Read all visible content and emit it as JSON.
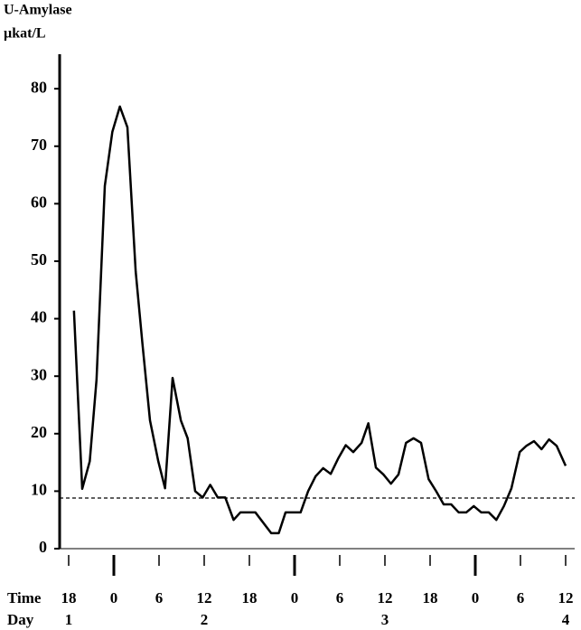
{
  "chart_data": {
    "type": "line",
    "title": "U-Amylase",
    "y_unit": "µkat/L",
    "x_row_labels": [
      "Time",
      "Day"
    ],
    "x": [
      18.7,
      19.8,
      20.8,
      21.7,
      22.8,
      23.8,
      24.8,
      25.8,
      26.9,
      27.8,
      28.8,
      29.9,
      30.8,
      31.8,
      32.9,
      33.8,
      34.8,
      35.8,
      36.8,
      37.8,
      38.8,
      39.9,
      40.8,
      42.8,
      44.9,
      45.9,
      46.8,
      48.8,
      49.8,
      50.8,
      51.8,
      52.8,
      53.8,
      54.8,
      55.8,
      56.9,
      57.8,
      58.8,
      59.8,
      60.8,
      61.8,
      62.8,
      63.8,
      64.8,
      65.8,
      66.8,
      67.8,
      68.8,
      69.8,
      70.8,
      71.8,
      72.8,
      73.8,
      74.8,
      75.8,
      76.8,
      77.9,
      78.8,
      79.8,
      80.8,
      81.8,
      82.8,
      84
    ],
    "values": [
      41.4,
      10.4,
      15.2,
      29.4,
      63.1,
      72.5,
      76.9,
      73.3,
      48.2,
      35.6,
      22.3,
      15.2,
      10.5,
      29.7,
      22.3,
      19.2,
      10,
      8.9,
      11.1,
      8.9,
      8.9,
      5,
      6.3,
      6.3,
      2.7,
      2.7,
      6.3,
      6.3,
      10,
      12.6,
      14,
      13,
      15.7,
      18,
      16.8,
      18.4,
      21.8,
      14.1,
      12.9,
      11.3,
      12.9,
      18.4,
      19.2,
      18.4,
      12.1,
      10,
      7.7,
      7.7,
      6.3,
      6.3,
      7.4,
      6.3,
      6.3,
      5,
      7.4,
      10.5,
      16.8,
      17.9,
      18.7,
      17.3,
      19,
      17.9,
      14.4
    ],
    "color": "#000000",
    "reference_line": 8.8,
    "xlim": [
      16.8,
      85.2
    ],
    "xticks": [
      {
        "value": 18,
        "label": "18"
      },
      {
        "value": 24,
        "label": "0"
      },
      {
        "value": 30,
        "label": "6"
      },
      {
        "value": 36,
        "label": "12"
      },
      {
        "value": 42,
        "label": "18"
      },
      {
        "value": 48,
        "label": "0"
      },
      {
        "value": 54,
        "label": "6"
      },
      {
        "value": 60,
        "label": "12"
      },
      {
        "value": 66,
        "label": "18"
      },
      {
        "value": 72,
        "label": "0"
      },
      {
        "value": 78,
        "label": "6"
      },
      {
        "value": 84,
        "label": "12"
      }
    ],
    "day_ticks": [
      {
        "value": 18,
        "label": "1"
      },
      {
        "value": 36,
        "label": "2"
      },
      {
        "value": 60,
        "label": "3"
      },
      {
        "value": 84,
        "label": "4"
      }
    ],
    "ylim": [
      0,
      86
    ],
    "yticks": [
      0,
      10,
      20,
      30,
      40,
      50,
      60,
      70,
      80
    ],
    "grid": false
  }
}
